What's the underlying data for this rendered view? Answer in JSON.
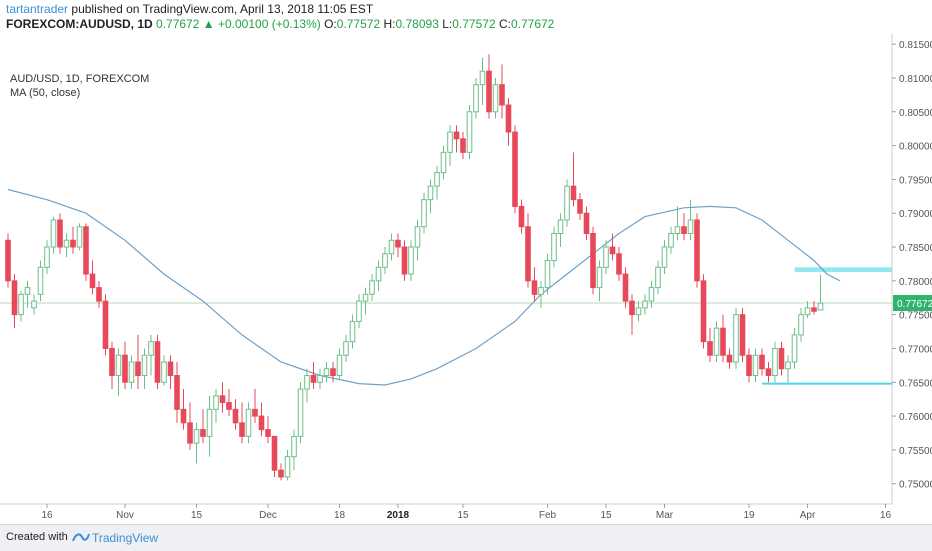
{
  "header": {
    "author": "tartantrader",
    "published": "published on TradingView.com, April 13, 2018 11:05 EST",
    "symbol": "FOREXCOM:AUDUSD, 1D",
    "last": "0.77672",
    "change_arrow": "▲",
    "change": "+0.00100 (+0.13%)",
    "o_label": "O:",
    "o": "0.77572",
    "h_label": "H:",
    "h": "0.78093",
    "l_label": "L:",
    "l": "0.77572",
    "c_label": "C:",
    "c": "0.77672"
  },
  "legend": {
    "symbol": "AUD/USD, 1D, FOREXCOM",
    "ma": "MA (50, close)"
  },
  "footer": {
    "created_with": "Created with",
    "brand": "TradingView"
  },
  "colors": {
    "up": "#a8d8b9",
    "down": "#e8495a",
    "ma": "#6ea1c9",
    "price_line": "#b8d9b8",
    "price_tag": "#30b36e",
    "zone": "#7de4f0",
    "support": "#4fd6ea"
  },
  "chart_data": {
    "type": "candlestick",
    "symbol": "AUD/USD",
    "timeframe": "1D",
    "ylim": [
      0.747,
      0.8165
    ],
    "y_ticks": [
      "0.81500",
      "0.81000",
      "0.80500",
      "0.80000",
      "0.79500",
      "0.79000",
      "0.78500",
      "0.78000",
      "0.77500",
      "0.77000",
      "0.76500",
      "0.76000",
      "0.75500",
      "0.75000"
    ],
    "x_ticks": [
      {
        "label": "16",
        "bar": 6
      },
      {
        "label": "Nov",
        "bar": 18
      },
      {
        "label": "15",
        "bar": 29
      },
      {
        "label": "Dec",
        "bar": 40
      },
      {
        "label": "18",
        "bar": 51
      },
      {
        "label": "2018",
        "bar": 60
      },
      {
        "label": "15",
        "bar": 70
      },
      {
        "label": "Feb",
        "bar": 83
      },
      {
        "label": "15",
        "bar": 92
      },
      {
        "label": "Mar",
        "bar": 101
      },
      {
        "label": "19",
        "bar": 114
      },
      {
        "label": "Apr",
        "bar": 123
      },
      {
        "label": "16",
        "bar": 135
      }
    ],
    "last_price": 0.77672,
    "last_price_label": "0.77672",
    "resistance_zone": {
      "from_bar": 121,
      "to_bar": 136,
      "low": 0.7813,
      "high": 0.782
    },
    "support_line": {
      "from_bar": 116,
      "to_bar": 136,
      "value": 0.7648
    },
    "ohlc": [
      [
        0.786,
        0.787,
        0.779,
        0.78
      ],
      [
        0.78,
        0.781,
        0.773,
        0.775
      ],
      [
        0.775,
        0.7785,
        0.774,
        0.778
      ],
      [
        0.778,
        0.78,
        0.776,
        0.779
      ],
      [
        0.776,
        0.778,
        0.775,
        0.777
      ],
      [
        0.778,
        0.783,
        0.777,
        0.782
      ],
      [
        0.782,
        0.786,
        0.781,
        0.785
      ],
      [
        0.785,
        0.7895,
        0.784,
        0.789
      ],
      [
        0.789,
        0.79,
        0.784,
        0.785
      ],
      [
        0.785,
        0.787,
        0.7835,
        0.786
      ],
      [
        0.786,
        0.788,
        0.784,
        0.785
      ],
      [
        0.785,
        0.7885,
        0.7845,
        0.788
      ],
      [
        0.788,
        0.7885,
        0.78,
        0.781
      ],
      [
        0.781,
        0.783,
        0.778,
        0.779
      ],
      [
        0.779,
        0.78,
        0.776,
        0.777
      ],
      [
        0.777,
        0.778,
        0.769,
        0.77
      ],
      [
        0.77,
        0.771,
        0.764,
        0.766
      ],
      [
        0.766,
        0.77,
        0.763,
        0.769
      ],
      [
        0.769,
        0.771,
        0.764,
        0.765
      ],
      [
        0.765,
        0.769,
        0.764,
        0.768
      ],
      [
        0.768,
        0.772,
        0.764,
        0.766
      ],
      [
        0.766,
        0.77,
        0.764,
        0.769
      ],
      [
        0.769,
        0.772,
        0.766,
        0.771
      ],
      [
        0.771,
        0.772,
        0.764,
        0.765
      ],
      [
        0.765,
        0.769,
        0.7645,
        0.768
      ],
      [
        0.768,
        0.769,
        0.764,
        0.766
      ],
      [
        0.766,
        0.768,
        0.759,
        0.761
      ],
      [
        0.761,
        0.764,
        0.758,
        0.759
      ],
      [
        0.759,
        0.762,
        0.755,
        0.756
      ],
      [
        0.756,
        0.759,
        0.753,
        0.758
      ],
      [
        0.758,
        0.761,
        0.756,
        0.757
      ],
      [
        0.757,
        0.763,
        0.754,
        0.761
      ],
      [
        0.761,
        0.764,
        0.759,
        0.763
      ],
      [
        0.763,
        0.765,
        0.7605,
        0.762
      ],
      [
        0.762,
        0.764,
        0.76,
        0.761
      ],
      [
        0.761,
        0.7625,
        0.758,
        0.759
      ],
      [
        0.759,
        0.762,
        0.756,
        0.757
      ],
      [
        0.757,
        0.762,
        0.756,
        0.761
      ],
      [
        0.761,
        0.764,
        0.759,
        0.76
      ],
      [
        0.76,
        0.762,
        0.757,
        0.758
      ],
      [
        0.758,
        0.76,
        0.756,
        0.757
      ],
      [
        0.757,
        0.757,
        0.751,
        0.752
      ],
      [
        0.752,
        0.753,
        0.7505,
        0.751
      ],
      [
        0.751,
        0.755,
        0.7505,
        0.754
      ],
      [
        0.754,
        0.758,
        0.752,
        0.757
      ],
      [
        0.757,
        0.765,
        0.756,
        0.764
      ],
      [
        0.764,
        0.767,
        0.762,
        0.766
      ],
      [
        0.766,
        0.768,
        0.764,
        0.765
      ],
      [
        0.765,
        0.767,
        0.764,
        0.766
      ],
      [
        0.766,
        0.768,
        0.765,
        0.767
      ],
      [
        0.767,
        0.768,
        0.765,
        0.766
      ],
      [
        0.766,
        0.77,
        0.7655,
        0.769
      ],
      [
        0.769,
        0.772,
        0.768,
        0.771
      ],
      [
        0.771,
        0.775,
        0.77,
        0.774
      ],
      [
        0.774,
        0.778,
        0.773,
        0.777
      ],
      [
        0.777,
        0.779,
        0.775,
        0.778
      ],
      [
        0.778,
        0.781,
        0.777,
        0.78
      ],
      [
        0.78,
        0.783,
        0.7785,
        0.782
      ],
      [
        0.782,
        0.785,
        0.781,
        0.784
      ],
      [
        0.784,
        0.787,
        0.783,
        0.786
      ],
      [
        0.786,
        0.787,
        0.7835,
        0.785
      ],
      [
        0.785,
        0.786,
        0.78,
        0.781
      ],
      [
        0.781,
        0.786,
        0.78,
        0.785
      ],
      [
        0.785,
        0.789,
        0.783,
        0.788
      ],
      [
        0.788,
        0.793,
        0.787,
        0.792
      ],
      [
        0.792,
        0.795,
        0.79,
        0.794
      ],
      [
        0.794,
        0.797,
        0.792,
        0.796
      ],
      [
        0.796,
        0.8,
        0.795,
        0.799
      ],
      [
        0.799,
        0.803,
        0.797,
        0.802
      ],
      [
        0.802,
        0.803,
        0.799,
        0.801
      ],
      [
        0.801,
        0.802,
        0.798,
        0.799
      ],
      [
        0.799,
        0.806,
        0.798,
        0.805
      ],
      [
        0.805,
        0.81,
        0.804,
        0.809
      ],
      [
        0.809,
        0.813,
        0.806,
        0.811
      ],
      [
        0.811,
        0.8135,
        0.804,
        0.805
      ],
      [
        0.805,
        0.81,
        0.804,
        0.809
      ],
      [
        0.809,
        0.812,
        0.804,
        0.806
      ],
      [
        0.806,
        0.807,
        0.8,
        0.802
      ],
      [
        0.802,
        0.803,
        0.79,
        0.791
      ],
      [
        0.791,
        0.792,
        0.787,
        0.788
      ],
      [
        0.788,
        0.79,
        0.779,
        0.78
      ],
      [
        0.78,
        0.782,
        0.777,
        0.778
      ],
      [
        0.778,
        0.78,
        0.776,
        0.779
      ],
      [
        0.779,
        0.784,
        0.778,
        0.783
      ],
      [
        0.783,
        0.788,
        0.782,
        0.787
      ],
      [
        0.787,
        0.79,
        0.785,
        0.789
      ],
      [
        0.789,
        0.795,
        0.788,
        0.794
      ],
      [
        0.794,
        0.799,
        0.791,
        0.792
      ],
      [
        0.792,
        0.793,
        0.789,
        0.79
      ],
      [
        0.79,
        0.791,
        0.786,
        0.787
      ],
      [
        0.787,
        0.788,
        0.778,
        0.779
      ],
      [
        0.779,
        0.783,
        0.777,
        0.782
      ],
      [
        0.782,
        0.786,
        0.781,
        0.785
      ],
      [
        0.785,
        0.787,
        0.783,
        0.784
      ],
      [
        0.784,
        0.785,
        0.78,
        0.781
      ],
      [
        0.781,
        0.782,
        0.776,
        0.777
      ],
      [
        0.777,
        0.778,
        0.772,
        0.775
      ],
      [
        0.775,
        0.777,
        0.774,
        0.776
      ],
      [
        0.776,
        0.778,
        0.775,
        0.777
      ],
      [
        0.777,
        0.78,
        0.776,
        0.779
      ],
      [
        0.779,
        0.783,
        0.778,
        0.782
      ],
      [
        0.782,
        0.786,
        0.781,
        0.785
      ],
      [
        0.785,
        0.788,
        0.784,
        0.787
      ],
      [
        0.787,
        0.791,
        0.786,
        0.788
      ],
      [
        0.788,
        0.79,
        0.786,
        0.787
      ],
      [
        0.787,
        0.792,
        0.786,
        0.789
      ],
      [
        0.789,
        0.79,
        0.779,
        0.78
      ],
      [
        0.78,
        0.781,
        0.77,
        0.771
      ],
      [
        0.771,
        0.773,
        0.768,
        0.769
      ],
      [
        0.769,
        0.774,
        0.768,
        0.773
      ],
      [
        0.773,
        0.775,
        0.768,
        0.769
      ],
      [
        0.769,
        0.77,
        0.767,
        0.768
      ],
      [
        0.768,
        0.776,
        0.767,
        0.775
      ],
      [
        0.775,
        0.776,
        0.768,
        0.769
      ],
      [
        0.769,
        0.77,
        0.765,
        0.766
      ],
      [
        0.766,
        0.77,
        0.765,
        0.769
      ],
      [
        0.769,
        0.77,
        0.766,
        0.767
      ],
      [
        0.767,
        0.768,
        0.765,
        0.766
      ],
      [
        0.766,
        0.771,
        0.765,
        0.77
      ],
      [
        0.77,
        0.771,
        0.766,
        0.767
      ],
      [
        0.767,
        0.769,
        0.765,
        0.768
      ],
      [
        0.768,
        0.773,
        0.767,
        0.772
      ],
      [
        0.772,
        0.776,
        0.771,
        0.775
      ],
      [
        0.775,
        0.777,
        0.7745,
        0.776
      ],
      [
        0.776,
        0.777,
        0.775,
        0.7755
      ],
      [
        0.7757,
        0.7809,
        0.7757,
        0.7767
      ]
    ],
    "ma_50": [
      [
        0,
        0.7935
      ],
      [
        6,
        0.792
      ],
      [
        12,
        0.79
      ],
      [
        18,
        0.786
      ],
      [
        24,
        0.781
      ],
      [
        30,
        0.777
      ],
      [
        36,
        0.772
      ],
      [
        42,
        0.768
      ],
      [
        48,
        0.766
      ],
      [
        54,
        0.7648
      ],
      [
        58,
        0.7646
      ],
      [
        62,
        0.7655
      ],
      [
        66,
        0.767
      ],
      [
        72,
        0.77
      ],
      [
        78,
        0.774
      ],
      [
        82,
        0.778
      ],
      [
        86,
        0.781
      ],
      [
        90,
        0.784
      ],
      [
        94,
        0.787
      ],
      [
        98,
        0.7895
      ],
      [
        104,
        0.7908
      ],
      [
        108,
        0.791
      ],
      [
        112,
        0.7908
      ],
      [
        116,
        0.789
      ],
      [
        120,
        0.786
      ],
      [
        124,
        0.783
      ],
      [
        126,
        0.781
      ],
      [
        128,
        0.78
      ]
    ]
  }
}
